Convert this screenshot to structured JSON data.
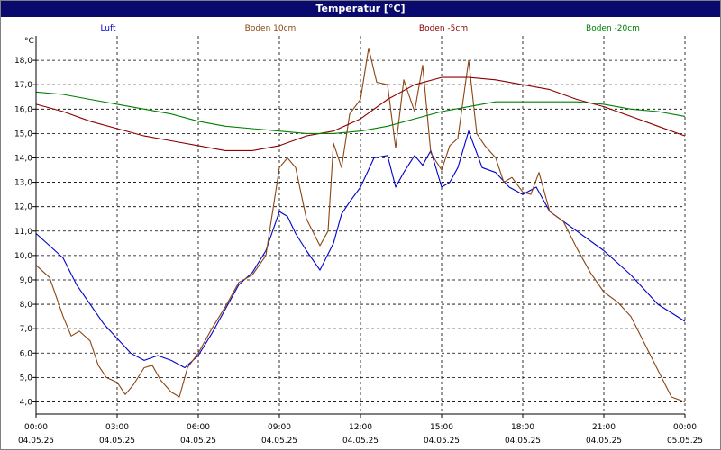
{
  "window": {
    "title": "Temperatur [°C]"
  },
  "chart_data": {
    "type": "line",
    "title": "Temperatur [°C]",
    "ylabel": "°C",
    "xlabel": "",
    "ylim": [
      3.5,
      19.0
    ],
    "xlim": [
      0,
      24
    ],
    "grid": true,
    "legend": "top",
    "y_ticks": [
      "4,0",
      "5,0",
      "6,0",
      "7,0",
      "8,0",
      "9,0",
      "10,0",
      "11,0",
      "12,0",
      "13,0",
      "14,0",
      "15,0",
      "16,0",
      "17,0",
      "18,0"
    ],
    "y_tick_values": [
      4,
      5,
      6,
      7,
      8,
      9,
      10,
      11,
      12,
      13,
      14,
      15,
      16,
      17,
      18
    ],
    "x_tick_values": [
      0,
      3,
      6,
      9,
      12,
      15,
      18,
      21,
      24
    ],
    "x_ticks_time": [
      "00:00",
      "03:00",
      "06:00",
      "09:00",
      "12:00",
      "15:00",
      "18:00",
      "21:00",
      "00:00"
    ],
    "x_ticks_date": [
      "04.05.25",
      "04.05.25",
      "04.05.25",
      "04.05.25",
      "04.05.25",
      "04.05.25",
      "04.05.25",
      "04.05.25",
      "05.05.25"
    ],
    "series": [
      {
        "name": "Luft",
        "color": "#0000cc",
        "x": [
          0,
          0.5,
          1,
          1.5,
          2,
          2.5,
          3,
          3.5,
          4,
          4.5,
          5,
          5.5,
          6,
          6.5,
          7,
          7.5,
          8,
          8.5,
          9,
          9.3,
          9.6,
          10,
          10.5,
          11,
          11.3,
          11.6,
          12,
          12.5,
          13,
          13.3,
          13.6,
          14,
          14.3,
          14.6,
          15,
          15.3,
          15.6,
          16,
          16.5,
          17,
          17.5,
          18,
          18.5,
          19,
          20,
          21,
          22,
          23,
          24
        ],
        "y": [
          10.9,
          10.4,
          9.9,
          8.8,
          8.0,
          7.2,
          6.6,
          6.0,
          5.7,
          5.9,
          5.7,
          5.4,
          5.9,
          6.8,
          7.8,
          8.8,
          9.3,
          10.2,
          11.8,
          11.6,
          10.9,
          10.2,
          9.4,
          10.5,
          11.7,
          12.2,
          12.8,
          14.0,
          14.1,
          12.8,
          13.4,
          14.1,
          13.7,
          14.3,
          12.8,
          13.0,
          13.6,
          15.1,
          13.6,
          13.4,
          12.8,
          12.5,
          12.8,
          11.8,
          11.0,
          10.2,
          9.2,
          8.0,
          7.3
        ]
      },
      {
        "name": "Boden 10cm",
        "color": "#8b4513",
        "x": [
          0,
          0.5,
          1,
          1.3,
          1.6,
          2,
          2.3,
          2.6,
          3,
          3.3,
          3.6,
          4,
          4.3,
          4.6,
          5,
          5.3,
          5.6,
          6,
          6.5,
          7,
          7.5,
          8,
          8.5,
          9,
          9.3,
          9.6,
          10,
          10.5,
          10.8,
          11,
          11.3,
          11.6,
          12,
          12.3,
          12.6,
          13,
          13.3,
          13.6,
          14,
          14.3,
          14.6,
          15,
          15.3,
          15.6,
          16,
          16.3,
          16.6,
          17,
          17.3,
          17.6,
          18,
          18.3,
          18.6,
          19,
          19.5,
          20,
          20.5,
          21,
          21.5,
          22,
          22.5,
          23,
          23.5,
          24
        ],
        "y": [
          9.6,
          9.1,
          7.5,
          6.7,
          6.9,
          6.5,
          5.5,
          5.0,
          4.8,
          4.3,
          4.7,
          5.4,
          5.5,
          4.9,
          4.4,
          4.2,
          5.4,
          6.0,
          7.0,
          7.9,
          8.9,
          9.2,
          10.0,
          13.6,
          14.0,
          13.6,
          11.5,
          10.4,
          11.0,
          14.6,
          13.6,
          15.8,
          16.4,
          18.5,
          17.1,
          17.0,
          14.4,
          17.2,
          15.9,
          17.8,
          14.2,
          13.5,
          14.5,
          14.8,
          18.0,
          15.0,
          14.5,
          14.0,
          13.0,
          13.2,
          12.6,
          12.5,
          13.4,
          11.8,
          11.4,
          10.3,
          9.3,
          8.5,
          8.1,
          7.5,
          6.4,
          5.3,
          4.2,
          4.0
        ]
      },
      {
        "name": "Boden -5cm",
        "color": "#8b0000",
        "x": [
          0,
          1,
          2,
          3,
          4,
          5,
          6,
          7,
          8,
          9,
          10,
          11,
          12,
          13,
          14,
          15,
          16,
          17,
          18,
          19,
          20,
          21,
          22,
          23,
          24
        ],
        "y": [
          16.2,
          15.9,
          15.5,
          15.2,
          14.9,
          14.7,
          14.5,
          14.3,
          14.3,
          14.5,
          14.9,
          15.1,
          15.6,
          16.4,
          17.0,
          17.3,
          17.3,
          17.2,
          17.0,
          16.8,
          16.4,
          16.1,
          15.7,
          15.3,
          14.9
        ]
      },
      {
        "name": "Boden -20cm",
        "color": "#008000",
        "x": [
          0,
          1,
          2,
          3,
          4,
          5,
          6,
          7,
          8,
          9,
          10,
          11,
          12,
          13,
          14,
          15,
          16,
          17,
          18,
          19,
          20,
          21,
          22,
          23,
          24
        ],
        "y": [
          16.7,
          16.6,
          16.4,
          16.2,
          16.0,
          15.8,
          15.5,
          15.3,
          15.2,
          15.1,
          15.0,
          15.0,
          15.1,
          15.3,
          15.6,
          15.9,
          16.1,
          16.3,
          16.3,
          16.3,
          16.3,
          16.2,
          16.0,
          15.9,
          15.7
        ]
      }
    ]
  }
}
